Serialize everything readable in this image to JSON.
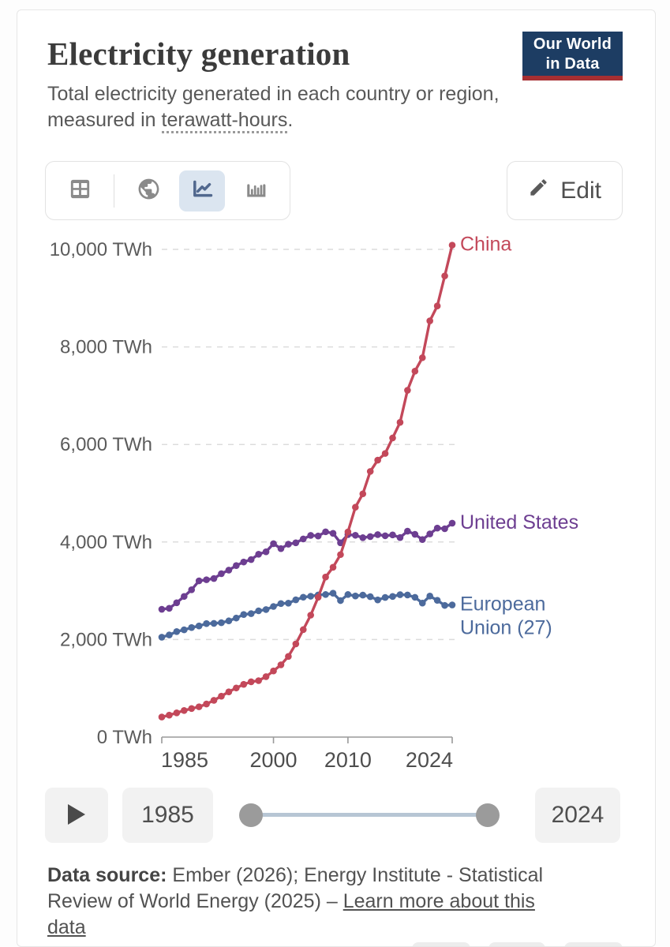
{
  "header": {
    "title": "Electricity generation",
    "subtitle_prefix": "Total electricity generated in each country or region, measured in ",
    "subtitle_term": "terawatt-hours",
    "subtitle_suffix": ".",
    "logo": {
      "line1": "Our World",
      "line2": "in Data",
      "bg_color": "#1d3d63",
      "accent_color": "#a62f32"
    }
  },
  "toolbar": {
    "views": [
      "table-view",
      "map-view",
      "line-chart-view",
      "bar-chart-view"
    ],
    "selected_view": "line-chart-view",
    "selected_bg": "#dbe5f0",
    "icon_color": "#8a8a8a",
    "selected_icon_color": "#51688e",
    "edit_label": "Edit"
  },
  "chart_data": {
    "type": "line",
    "unit": "TWh",
    "x": [
      1985,
      1986,
      1987,
      1988,
      1989,
      1990,
      1991,
      1992,
      1993,
      1994,
      1995,
      1996,
      1997,
      1998,
      1999,
      2000,
      2001,
      2002,
      2003,
      2004,
      2005,
      2006,
      2007,
      2008,
      2009,
      2010,
      2011,
      2012,
      2013,
      2014,
      2015,
      2016,
      2017,
      2018,
      2019,
      2020,
      2021,
      2022,
      2023,
      2024
    ],
    "x_ticks": [
      {
        "year": 1985,
        "label": "1985",
        "align": "start"
      },
      {
        "year": 2000,
        "label": "2000",
        "align": "middle"
      },
      {
        "year": 2010,
        "label": "2010",
        "align": "middle"
      },
      {
        "year": 2024,
        "label": "2024",
        "align": "end"
      }
    ],
    "y_ticks": [
      {
        "value": 0,
        "label": "0 TWh"
      },
      {
        "value": 2000,
        "label": "2,000 TWh"
      },
      {
        "value": 4000,
        "label": "4,000 TWh"
      },
      {
        "value": 6000,
        "label": "6,000 TWh"
      },
      {
        "value": 8000,
        "label": "8,000 TWh"
      },
      {
        "value": 10000,
        "label": "10,000 TWh"
      }
    ],
    "ylim": [
      0,
      10000
    ],
    "grid": true,
    "legend_position": "end-of-line",
    "series": [
      {
        "name": "European Union (27)",
        "label_lines": [
          "European",
          "Union (27)"
        ],
        "color": "#4c6a9c",
        "values": [
          2048,
          2094,
          2163,
          2199,
          2246,
          2278,
          2327,
          2331,
          2345,
          2383,
          2441,
          2513,
          2531,
          2589,
          2615,
          2678,
          2738,
          2746,
          2815,
          2868,
          2888,
          2914,
          2923,
          2950,
          2799,
          2923,
          2893,
          2911,
          2879,
          2812,
          2863,
          2883,
          2920,
          2913,
          2866,
          2747,
          2891,
          2804,
          2700,
          2710
        ]
      },
      {
        "name": "United States",
        "label_lines": [
          "United States"
        ],
        "color": "#6d3e91",
        "values": [
          2621,
          2640,
          2754,
          2884,
          3021,
          3203,
          3226,
          3252,
          3351,
          3423,
          3517,
          3590,
          3640,
          3749,
          3800,
          3965,
          3864,
          3955,
          3984,
          4063,
          4135,
          4123,
          4209,
          4178,
          3984,
          4152,
          4138,
          4088,
          4111,
          4151,
          4128,
          4145,
          4091,
          4222,
          4158,
          4050,
          4165,
          4285,
          4272,
          4386
        ]
      },
      {
        "name": "China",
        "label_lines": [
          "China"
        ],
        "color": "#c3485a",
        "values": [
          411,
          450,
          497,
          545,
          585,
          621,
          678,
          754,
          839,
          928,
          1007,
          1081,
          1134,
          1157,
          1239,
          1356,
          1481,
          1654,
          1911,
          2203,
          2500,
          2866,
          3282,
          3482,
          3742,
          4207,
          4713,
          4988,
          5447,
          5678,
          5815,
          6133,
          6453,
          7111,
          7503,
          7779,
          8534,
          8840,
          9456,
          10087
        ]
      }
    ]
  },
  "timeline": {
    "start_year": "1985",
    "end_year": "2024"
  },
  "footer": {
    "source_label": "Data source:",
    "source_text": " Ember (2026); Energy Institute - Statistical Review of World Energy (2025) – ",
    "link_text": "Learn more about this data"
  }
}
